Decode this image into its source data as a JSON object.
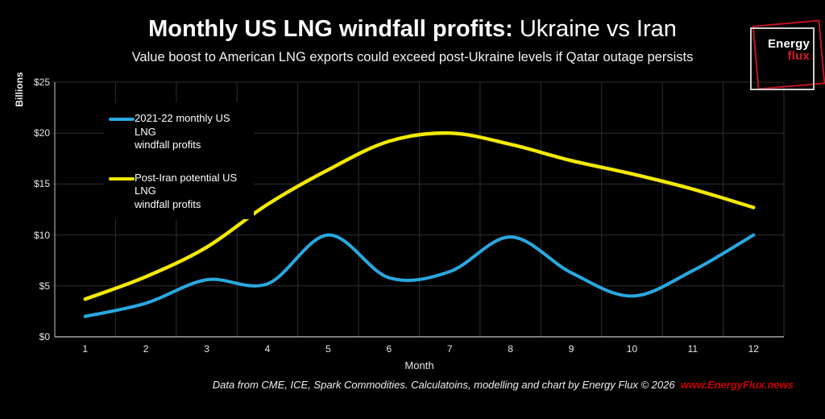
{
  "title": {
    "bold": "Monthly US LNG windfall profits:",
    "regular": " Ukraine vs Iran"
  },
  "subtitle": "Value boost to American LNG exports could exceed post-Ukraine levels if Qatar outage persists",
  "legend": [
    {
      "line1": "2021-22 monthly US LNG",
      "line2": "windfall profits",
      "color": "#29a8e0"
    },
    {
      "line1": "Post-Iran potential US LNG",
      "line2": "windfall profits",
      "color": "#f2e900"
    }
  ],
  "footer": {
    "text": "Data from CME, ICE, Spark Commodities. Calculatoins, modelling and chart by Energy Flux © 2026",
    "link": "www.EnergyFlux.news"
  },
  "logo": {
    "line1": "Energy",
    "line2": "flux"
  },
  "chart_data": {
    "type": "line",
    "title": "Monthly US LNG windfall profits: Ukraine vs Iran",
    "subtitle": "Value boost to American LNG exports could exceed post-Ukraine levels if Qatar outage persists",
    "xlabel": "Month",
    "ylabel": "Billions",
    "x": [
      1,
      2,
      3,
      4,
      5,
      6,
      7,
      8,
      9,
      10,
      11,
      12
    ],
    "x_ticks": [
      "1",
      "2",
      "3",
      "4",
      "5",
      "6",
      "7",
      "8",
      "9",
      "10",
      "11",
      "12"
    ],
    "y_ticks": [
      "$0",
      "$5",
      "$10",
      "$15",
      "$20",
      "$25"
    ],
    "ylim": [
      0,
      25
    ],
    "grid": true,
    "legend_position": "top-left-inside",
    "series": [
      {
        "name": "2021-22 monthly US LNG windfall profits",
        "color": "#29a8e0",
        "values": [
          2.0,
          3.3,
          5.6,
          5.2,
          10.0,
          5.8,
          6.4,
          9.8,
          6.3,
          4.0,
          6.5,
          10.0
        ]
      },
      {
        "name": "Post-Iran potential US LNG windfall profits",
        "color": "#f2e900",
        "values": [
          3.7,
          5.9,
          8.8,
          13.0,
          16.4,
          19.2,
          20.0,
          18.9,
          17.3,
          16.0,
          14.5,
          12.7
        ]
      }
    ]
  },
  "colors": {
    "background": "#000000",
    "gridline": "#2e2e2e",
    "axis_line": "#a6a6a6",
    "blue_series": "#29a8e0",
    "yellow_series": "#f2e900",
    "link_red": "#cc0000",
    "logo_red": "#c01323"
  }
}
